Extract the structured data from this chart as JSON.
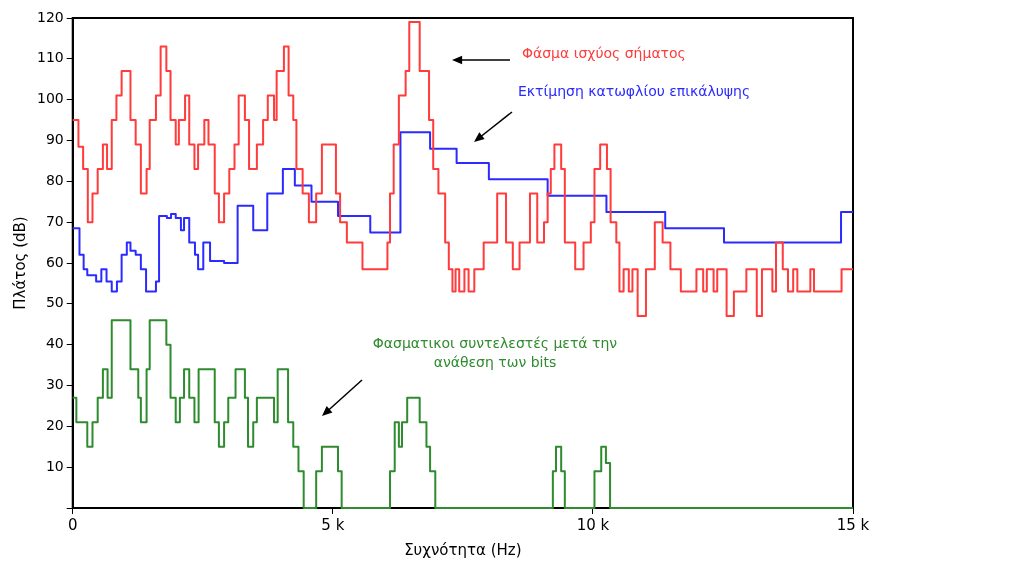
{
  "chart_data": {
    "type": "step",
    "xlabel": "Συχνότητα (Hz)",
    "ylabel": "Πλάτος (dB)",
    "xlim": [
      0,
      15000
    ],
    "xticks": [
      {
        "value": 0,
        "label": "0"
      },
      {
        "value": 5000,
        "label": "5 k"
      },
      {
        "value": 10000,
        "label": "10 k"
      },
      {
        "value": 15000,
        "label": "15 k"
      }
    ],
    "ylim": [
      0,
      120
    ],
    "yticks": [
      {
        "value": 0,
        "label": null
      },
      10,
      20,
      30,
      40,
      50,
      60,
      70,
      80,
      90,
      100,
      110,
      120
    ],
    "grid": false,
    "legend": false,
    "marker": "none",
    "line_style": "solid",
    "series": [
      {
        "name": "Φάσμα ισχύος σήματος",
        "color": "#ff3b3b",
        "x": [
          0,
          110,
          200,
          290,
          380,
          480,
          580,
          660,
          750,
          840,
          940,
          1110,
          1210,
          1310,
          1420,
          1480,
          1600,
          1690,
          1800,
          1880,
          1980,
          2040,
          2160,
          2240,
          2340,
          2410,
          2530,
          2610,
          2730,
          2810,
          2910,
          3010,
          3110,
          3190,
          3310,
          3390,
          3540,
          3660,
          3750,
          3870,
          3920,
          4060,
          4150,
          4240,
          4300,
          4420,
          4540,
          4680,
          4790,
          5060,
          5140,
          5270,
          5570,
          6050,
          6100,
          6170,
          6270,
          6400,
          6470,
          6670,
          6850,
          6930,
          7030,
          7160,
          7230,
          7300,
          7360,
          7430,
          7530,
          7610,
          7720,
          7900,
          8160,
          8330,
          8460,
          8590,
          8790,
          8930,
          9060,
          9130,
          9190,
          9260,
          9390,
          9460,
          9660,
          9820,
          9960,
          10030,
          10140,
          10270,
          10340,
          10450,
          10510,
          10590,
          10690,
          10760,
          10860,
          11020,
          11190,
          11340,
          11490,
          11690,
          11990,
          12120,
          12190,
          12320,
          12390,
          12570,
          12710,
          12950,
          13150,
          13250,
          13450,
          13520,
          13650,
          13750,
          13850,
          13930,
          14180,
          14250,
          14780,
          15000
        ],
        "values": [
          95,
          88.5,
          83,
          70,
          77,
          83,
          89,
          83,
          95,
          101,
          107,
          95,
          89,
          77,
          83,
          95,
          101,
          113,
          107,
          95,
          89,
          95,
          101,
          89,
          83,
          89,
          95,
          89,
          77,
          70,
          77,
          83,
          89,
          101,
          95,
          83,
          89,
          95,
          101,
          95,
          107,
          113,
          101,
          95,
          83,
          77,
          70,
          77,
          89,
          77,
          70,
          65,
          58.5,
          65,
          77,
          89,
          101,
          107,
          119,
          107,
          95,
          83,
          77,
          65,
          58.5,
          53,
          58.5,
          53,
          58.5,
          53,
          58.5,
          65,
          77,
          65,
          58.5,
          65,
          77,
          65,
          70,
          77,
          83,
          89,
          83,
          65,
          58.5,
          65,
          70,
          83,
          89,
          83,
          70,
          65,
          53,
          58.5,
          53,
          58.5,
          47,
          58.5,
          70,
          65,
          58.5,
          53,
          58.5,
          53,
          58.5,
          53,
          58.5,
          47,
          53,
          58.5,
          47,
          58.5,
          53,
          65,
          58.5,
          53,
          58.5,
          53,
          58.5,
          53,
          58.5,
          58.5
        ]
      },
      {
        "name": "Εκτίμηση κατωφλίου επικάλυψης",
        "color": "#2b2bff",
        "x": [
          0,
          130,
          210,
          280,
          450,
          550,
          650,
          750,
          850,
          940,
          1040,
          1110,
          1210,
          1310,
          1410,
          1600,
          1660,
          1810,
          1890,
          1980,
          2080,
          2140,
          2240,
          2350,
          2410,
          2510,
          2640,
          2910,
          3170,
          3470,
          3740,
          4040,
          4270,
          4590,
          5100,
          5720,
          6300,
          6870,
          7380,
          8000,
          9130,
          10260,
          11390,
          12520,
          14770,
          15000
        ],
        "values": [
          68.5,
          62,
          58.5,
          57,
          55.5,
          58.5,
          55.5,
          53,
          55.5,
          62,
          65,
          63,
          62,
          58.5,
          53,
          55.5,
          71.5,
          71,
          72,
          71,
          68,
          71,
          65,
          62,
          58.5,
          65,
          60.5,
          60,
          74,
          68,
          77,
          83,
          79,
          75,
          71.5,
          67.5,
          92,
          88,
          84.5,
          80.5,
          76.5,
          72.5,
          68.5,
          65,
          72.5,
          72.5
        ]
      },
      {
        "name": "Φασματικοι συντελεστές μετά την ανάθεση των bits",
        "color": "#2e8b2e",
        "x": [
          0,
          70,
          280,
          380,
          480,
          580,
          670,
          750,
          1110,
          1260,
          1310,
          1420,
          1480,
          1800,
          1880,
          1980,
          2060,
          2140,
          2240,
          2340,
          2420,
          2730,
          2810,
          2910,
          2990,
          3130,
          3310,
          3370,
          3470,
          3540,
          3870,
          3940,
          4140,
          4240,
          4340,
          4440,
          4680,
          4790,
          5100,
          5170,
          6100,
          6190,
          6270,
          6330,
          6430,
          6670,
          6800,
          6870,
          6970,
          9230,
          9290,
          9390,
          9460,
          10030,
          10160,
          10250,
          10330,
          15000
        ],
        "values": [
          27,
          21,
          15,
          21,
          27,
          34,
          27,
          46,
          34,
          27,
          21,
          34,
          46,
          40,
          27,
          21,
          27,
          34,
          27,
          21,
          34,
          21,
          15,
          21,
          27,
          34,
          27,
          15,
          21,
          27,
          21,
          34,
          21,
          15,
          9,
          0,
          9,
          15,
          9,
          0,
          9,
          21,
          15,
          21,
          27,
          21,
          15,
          9,
          0,
          9,
          15,
          9,
          0,
          9,
          15,
          11,
          0,
          0
        ]
      }
    ]
  }
}
